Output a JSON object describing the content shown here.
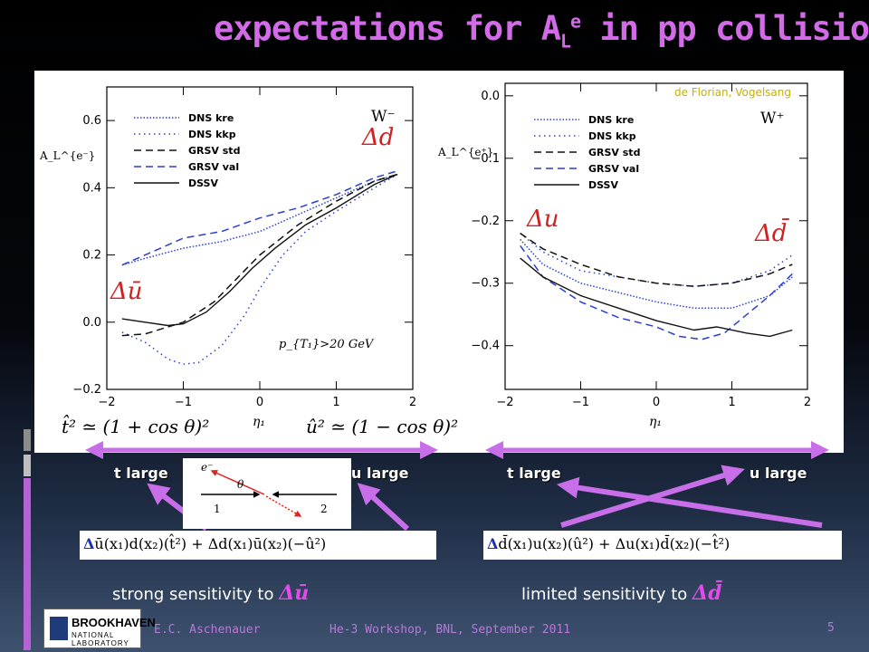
{
  "slide": {
    "title_main": "expectations for A",
    "title_sub": "L",
    "title_sup": "e",
    "title_rest": " in pp collisions",
    "credit": "de Florian, Vogelsang",
    "author": "E.C. Aschenauer",
    "event": "He-3 Workshop, BNL, September 2011",
    "page": "5",
    "logo_line1": "BROOKHAVEN",
    "logo_line2": "NATIONAL LABORATORY"
  },
  "labels": {
    "t_large_left": "t large",
    "u_large_left": "u large",
    "t_large_right": "t large",
    "u_large_right": "u large",
    "formula_left_lhs": "t̂² ≃ (1 + cos θ)²",
    "formula_left_rhs": "û² ≃ (1 − cos θ)²",
    "formula_left_delta": "Δ",
    "formula_left_body": "ū(x₁)d(x₂)(t̂²) + Δd(x₁)ū(x₂)(−û²)",
    "formula_right_delta": "Δ",
    "formula_right_body": "d̄(x₁)u(x₂)(û²) + Δu(x₁)d̄(x₂)(−t̂²)",
    "sens_left": "strong sensitivity to",
    "sens_left_q": "Δū",
    "sens_right": "limited sensitivity to",
    "sens_right_q": "Δd̄",
    "kin_e": "e⁻",
    "kin_theta": "θ",
    "kin_1": "1",
    "kin_2": "2"
  },
  "colors": {
    "title": "#d36be8",
    "arrow": "#c86ee8",
    "accent_blue": "#2a3fd0"
  },
  "chart_data": [
    {
      "type": "line",
      "title": "W⁻",
      "ylabel": "A_L^{e⁻}",
      "xlabel": "η₁",
      "xlim": [
        -2,
        2
      ],
      "ylim": [
        -0.2,
        0.7
      ],
      "xticks": [
        -2,
        -1,
        0,
        1,
        2
      ],
      "yticks": [
        -0.2,
        0.0,
        0.2,
        0.4,
        0.6
      ],
      "ytick_labels": [
        "−0.2",
        "0.0",
        "0.2",
        "0.4",
        "0.6"
      ],
      "xtick_labels": [
        "−2",
        "−1",
        "0",
        "1",
        "2"
      ],
      "annotations": [
        "Δd",
        "Δū",
        "p_{T₁}>20 GeV"
      ],
      "legend_position": "top-left",
      "series": [
        {
          "name": "DNS kre",
          "style": "dense-dot",
          "color": "#2a3fd0",
          "x": [
            -1.8,
            -1.5,
            -1,
            -0.5,
            0,
            0.5,
            1,
            1.5,
            1.8
          ],
          "values": [
            0.17,
            0.19,
            0.22,
            0.24,
            0.27,
            0.32,
            0.37,
            0.42,
            0.44
          ]
        },
        {
          "name": "DNS kkp",
          "style": "dot",
          "color": "#2a3fd0",
          "x": [
            -1.8,
            -1.5,
            -1.2,
            -1,
            -0.8,
            -0.5,
            -0.2,
            0,
            0.3,
            0.6,
            1,
            1.5,
            1.8
          ],
          "values": [
            -0.03,
            -0.06,
            -0.11,
            -0.125,
            -0.12,
            -0.07,
            0.02,
            0.1,
            0.2,
            0.27,
            0.33,
            0.4,
            0.44
          ]
        },
        {
          "name": "GRSV std",
          "style": "dash",
          "color": "#111111",
          "x": [
            -1.8,
            -1.5,
            -1,
            -0.6,
            -0.3,
            0,
            0.5,
            1,
            1.5,
            1.8
          ],
          "values": [
            -0.04,
            -0.035,
            0.0,
            0.06,
            0.13,
            0.2,
            0.29,
            0.36,
            0.42,
            0.44
          ]
        },
        {
          "name": "GRSV val",
          "style": "dash",
          "color": "#2a3fd0",
          "x": [
            -1.8,
            -1.5,
            -1,
            -0.5,
            0,
            0.5,
            1,
            1.5,
            1.8
          ],
          "values": [
            0.17,
            0.2,
            0.25,
            0.27,
            0.31,
            0.34,
            0.38,
            0.43,
            0.45
          ]
        },
        {
          "name": "DSSV",
          "style": "solid",
          "color": "#111111",
          "x": [
            -1.8,
            -1.5,
            -1.2,
            -1,
            -0.7,
            -0.4,
            -0.1,
            0.2,
            0.6,
            1,
            1.5,
            1.8
          ],
          "values": [
            0.01,
            0.0,
            -0.01,
            -0.005,
            0.03,
            0.09,
            0.16,
            0.22,
            0.29,
            0.34,
            0.41,
            0.44
          ]
        }
      ]
    },
    {
      "type": "line",
      "title": "W⁺",
      "ylabel": "A_L^{e⁺}",
      "xlabel": "η₁",
      "xlim": [
        -2,
        2
      ],
      "ylim": [
        -0.47,
        0.02
      ],
      "xticks": [
        -2,
        -1,
        0,
        1,
        2
      ],
      "yticks": [
        -0.4,
        -0.3,
        -0.2,
        -0.1,
        0.0
      ],
      "ytick_labels": [
        "−0.4",
        "−0.3",
        "−0.2",
        "−0.1",
        "0.0"
      ],
      "xtick_labels": [
        "−2",
        "−1",
        "0",
        "1",
        "2"
      ],
      "annotations": [
        "Δu",
        "Δd̄"
      ],
      "legend_position": "top-left",
      "series": [
        {
          "name": "DNS kre",
          "style": "dense-dot",
          "color": "#2a3fd0",
          "x": [
            -1.8,
            -1.5,
            -1,
            -0.5,
            0,
            0.5,
            1,
            1.5,
            1.8
          ],
          "values": [
            -0.23,
            -0.27,
            -0.3,
            -0.315,
            -0.33,
            -0.34,
            -0.34,
            -0.32,
            -0.29
          ]
        },
        {
          "name": "DNS kkp",
          "style": "dot",
          "color": "#2a3fd0",
          "x": [
            -1.8,
            -1.5,
            -1,
            -0.5,
            0,
            0.5,
            1,
            1.5,
            1.8
          ],
          "values": [
            -0.22,
            -0.25,
            -0.28,
            -0.29,
            -0.3,
            -0.305,
            -0.3,
            -0.28,
            -0.255
          ]
        },
        {
          "name": "GRSV std",
          "style": "dash",
          "color": "#111111",
          "x": [
            -1.8,
            -1.5,
            -1,
            -0.5,
            0,
            0.5,
            1,
            1.5,
            1.8
          ],
          "values": [
            -0.22,
            -0.245,
            -0.27,
            -0.29,
            -0.3,
            -0.305,
            -0.3,
            -0.285,
            -0.27
          ]
        },
        {
          "name": "GRSV val",
          "style": "dash",
          "color": "#2a3fd0",
          "x": [
            -1.8,
            -1.5,
            -1,
            -0.5,
            0,
            0.3,
            0.6,
            0.9,
            1.2,
            1.5,
            1.8
          ],
          "values": [
            -0.24,
            -0.29,
            -0.33,
            -0.355,
            -0.37,
            -0.385,
            -0.39,
            -0.38,
            -0.35,
            -0.32,
            -0.285
          ]
        },
        {
          "name": "DSSV",
          "style": "solid",
          "color": "#111111",
          "x": [
            -1.8,
            -1.5,
            -1,
            -0.5,
            0,
            0.5,
            0.8,
            1.2,
            1.5,
            1.8
          ],
          "values": [
            -0.26,
            -0.29,
            -0.32,
            -0.34,
            -0.36,
            -0.375,
            -0.37,
            -0.38,
            -0.385,
            -0.375
          ]
        }
      ]
    }
  ]
}
